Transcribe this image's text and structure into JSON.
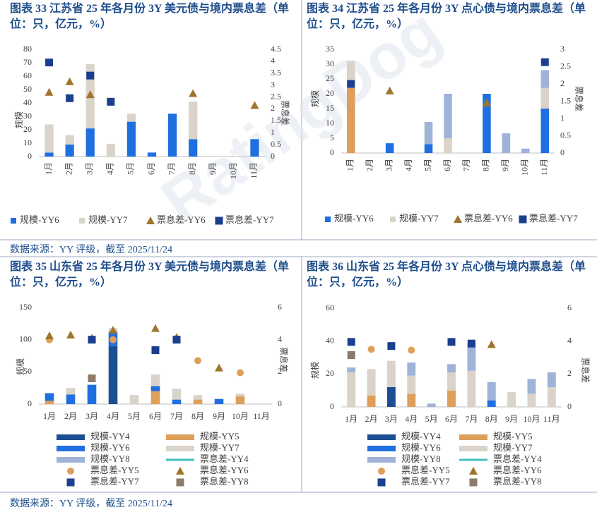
{
  "watermark": "RatingDog",
  "source_notes": [
    "数据来源：YY 评级，截至 2025/11/24",
    "数据来源：YY 评级，截至 2025/11/24"
  ],
  "chart_data": [
    {
      "type": "bar",
      "title": "图表 33 江苏省 25 年各月份 3Y 美元债与境内票息差（单位：只，亿元，%）",
      "y_label": "规模",
      "y2_label": "票息差",
      "categories": [
        "1月",
        "2月",
        "3月",
        "4月",
        "5月",
        "6月",
        "7月",
        "8月",
        "9月",
        "10月",
        "11月"
      ],
      "ylim": [
        0,
        80
      ],
      "yticks": [
        0,
        10,
        20,
        30,
        40,
        50,
        60,
        70,
        80
      ],
      "y2lim": [
        0,
        4.5
      ],
      "y2ticks": [
        0,
        0.5,
        1,
        1.5,
        2,
        2.5,
        3,
        3.5,
        4,
        4.5
      ],
      "series": [
        {
          "name": "规模-YY6",
          "kind": "bar",
          "color": "#1f6fe0",
          "values": [
            3,
            9,
            21,
            null,
            26,
            3,
            32,
            13,
            null,
            null,
            13
          ]
        },
        {
          "name": "规模-YY7",
          "kind": "bar",
          "color": "#d9d3c9",
          "values": [
            21,
            7,
            48,
            9.5,
            6,
            null,
            null,
            28,
            null,
            null,
            null
          ]
        },
        {
          "name": "票息差-YY6",
          "kind": "scatter",
          "marker": "triangle",
          "axis": "y2",
          "color": "#a0742c",
          "values": [
            2.7,
            3.15,
            2.6,
            null,
            null,
            null,
            null,
            2.65,
            null,
            null,
            2.15
          ]
        },
        {
          "name": "票息差-YY7",
          "kind": "scatter",
          "marker": "square",
          "axis": "y2",
          "color": "#1a3f8f",
          "values": [
            3.95,
            2.45,
            3.4,
            2.3,
            null,
            null,
            null,
            null,
            null,
            null,
            null
          ]
        }
      ]
    },
    {
      "type": "bar",
      "title": "图表 34 江苏省 25 年各月份 3Y 点心债与境内票息差（单位：只，亿元，%）",
      "y_label": "规模",
      "y2_label": "票息差",
      "categories": [
        "1月",
        "2月",
        "3月",
        "4月",
        "5月",
        "6月",
        "7月",
        "8月",
        "9月",
        "10月",
        "11月"
      ],
      "ylim": [
        0,
        35
      ],
      "yticks": [
        0,
        5,
        10,
        15,
        20,
        25,
        30,
        35
      ],
      "y2lim": [
        0,
        3
      ],
      "y2ticks": [
        0,
        0.5,
        1,
        1.5,
        2,
        2.5,
        3
      ],
      "series": [
        {
          "kind": "bar",
          "color": "#dd9f5a",
          "values": [
            22,
            null,
            null,
            null,
            null,
            null,
            null,
            null,
            null,
            null,
            null
          ]
        },
        {
          "name": "规模-YY6",
          "kind": "bar",
          "color": "#1f6fe0",
          "values": [
            null,
            null,
            3.3,
            null,
            3,
            null,
            null,
            20,
            null,
            null,
            15
          ]
        },
        {
          "name": "规模-YY7",
          "kind": "bar",
          "color": "#d9d3c9",
          "values": [
            9,
            null,
            null,
            null,
            null,
            5,
            null,
            null,
            null,
            null,
            7
          ]
        },
        {
          "kind": "bar",
          "color": "#9fb3d9",
          "values": [
            null,
            null,
            null,
            null,
            7.5,
            15,
            null,
            null,
            6.7,
            1.5,
            6
          ]
        },
        {
          "name": "票息差-YY6",
          "kind": "scatter",
          "marker": "triangle",
          "axis": "y2",
          "color": "#a0742c",
          "values": [
            null,
            null,
            1.8,
            null,
            null,
            null,
            null,
            1.45,
            null,
            null,
            null
          ]
        },
        {
          "name": "票息差-YY7",
          "kind": "scatter",
          "marker": "square",
          "axis": "y2",
          "color": "#1a3f8f",
          "values": [
            2.0,
            null,
            null,
            null,
            null,
            null,
            null,
            null,
            null,
            null,
            2.63
          ]
        }
      ]
    },
    {
      "type": "bar",
      "title": "图表 35 山东省 25 年各月份 3Y 美元债与境内票息差（单位：只，亿元，%）",
      "y_label": "规模",
      "y2_label": "票息差",
      "categories": [
        "1月",
        "2月",
        "3月",
        "4月",
        "5月",
        "6月",
        "7月",
        "8月",
        "9月",
        "10月",
        "11月"
      ],
      "ylim": [
        0,
        150
      ],
      "yticks": [
        0,
        50,
        100,
        150
      ],
      "y2lim": [
        0,
        6
      ],
      "y2ticks": [
        0,
        2,
        4,
        6
      ],
      "series": [
        {
          "name": "规模-YY4",
          "kind": "bar",
          "color": "#1b4f91",
          "values": [
            null,
            null,
            null,
            90,
            null,
            null,
            null,
            null,
            null,
            null,
            null
          ]
        },
        {
          "name": "规模-YY5",
          "kind": "bar",
          "color": "#dd9f5a",
          "values": [
            5,
            null,
            null,
            null,
            null,
            20,
            null,
            7,
            null,
            12,
            null
          ]
        },
        {
          "name": "规模-YY6",
          "kind": "bar",
          "color": "#1f6fe0",
          "values": [
            12,
            15,
            30,
            22,
            null,
            8,
            7,
            null,
            8,
            null,
            null
          ]
        },
        {
          "name": "规模-YY7",
          "kind": "bar",
          "color": "#d9d3c9",
          "values": [
            null,
            10,
            null,
            6,
            14,
            18,
            17,
            7,
            null,
            4,
            null
          ]
        },
        {
          "name": "规模-YY8",
          "kind": "bar",
          "color": "#9fb3d9",
          "values": [
            null,
            null,
            null,
            null,
            null,
            null,
            null,
            null,
            null,
            null,
            null
          ]
        },
        {
          "name": "票息差-YY4",
          "kind": "line",
          "axis": "y2",
          "color": "#3fbfbf",
          "values": [
            null,
            null,
            null,
            null,
            null,
            null,
            null,
            null,
            null,
            null,
            null
          ]
        },
        {
          "name": "票息差-YY5",
          "kind": "scatter",
          "marker": "circle",
          "axis": "y2",
          "color": "#dd9f5a",
          "values": [
            4.0,
            null,
            null,
            4.0,
            null,
            null,
            null,
            2.7,
            null,
            1.95,
            null
          ]
        },
        {
          "name": "票息差-YY6",
          "kind": "scatter",
          "marker": "triangle",
          "axis": "y2",
          "color": "#a0742c",
          "values": [
            4.25,
            4.3,
            4.1,
            4.6,
            null,
            4.7,
            4.15,
            null,
            2.25,
            null,
            null
          ]
        },
        {
          "name": "票息差-YY7",
          "kind": "scatter",
          "marker": "square",
          "axis": "y2",
          "color": "#1a3f8f",
          "values": [
            null,
            null,
            4.0,
            null,
            null,
            3.35,
            4.0,
            null,
            null,
            null,
            null
          ]
        },
        {
          "name": "票息差-YY8",
          "kind": "scatter",
          "marker": "square",
          "axis": "y2",
          "color": "#8c7b6a",
          "values": [
            null,
            null,
            1.6,
            null,
            null,
            null,
            null,
            null,
            null,
            null,
            null
          ]
        }
      ]
    },
    {
      "type": "bar",
      "title": "图表 36 山东省 25 年各月份 3Y 点心债与境内票息差（单位：只，亿元，%）",
      "y_label": "规模",
      "y2_label": "票息差",
      "categories": [
        "1月",
        "2月",
        "3月",
        "4月",
        "5月",
        "6月",
        "7月",
        "8月",
        "9月",
        "10月",
        "11月"
      ],
      "ylim": [
        0,
        60
      ],
      "yticks": [
        0,
        20,
        40,
        60
      ],
      "y2lim": [
        0,
        6
      ],
      "y2ticks": [
        0,
        2,
        4,
        6
      ],
      "series": [
        {
          "name": "规模-YY4",
          "kind": "bar",
          "color": "#1b4f91",
          "values": [
            null,
            null,
            12,
            null,
            null,
            null,
            null,
            null,
            null,
            null,
            null
          ]
        },
        {
          "name": "规模-YY5",
          "kind": "bar",
          "color": "#dd9f5a",
          "values": [
            null,
            7,
            null,
            8,
            null,
            10,
            null,
            null,
            null,
            null,
            null
          ]
        },
        {
          "name": "规模-YY6",
          "kind": "bar",
          "color": "#1f6fe0",
          "values": [
            null,
            null,
            null,
            null,
            null,
            null,
            null,
            4,
            null,
            null,
            null
          ]
        },
        {
          "name": "规模-YY7",
          "kind": "bar",
          "color": "#d9d3c9",
          "values": [
            21,
            16,
            16,
            11,
            null,
            11,
            22,
            null,
            9,
            8,
            12
          ]
        },
        {
          "name": "规模-YY8",
          "kind": "bar",
          "color": "#9fb3d9",
          "values": [
            3,
            null,
            null,
            8,
            2,
            5,
            17,
            11,
            null,
            9,
            9
          ]
        },
        {
          "name": "票息差-YY4",
          "kind": "line",
          "axis": "y2",
          "color": "#3fbfbf",
          "values": [
            null,
            null,
            null,
            null,
            null,
            null,
            null,
            null,
            null,
            null,
            null
          ]
        },
        {
          "name": "票息差-YY5",
          "kind": "scatter",
          "marker": "circle",
          "axis": "y2",
          "color": "#dd9f5a",
          "values": [
            null,
            3.5,
            null,
            3.45,
            null,
            null,
            null,
            null,
            null,
            null,
            null
          ]
        },
        {
          "name": "票息差-YY6",
          "kind": "scatter",
          "marker": "triangle",
          "axis": "y2",
          "color": "#a0742c",
          "values": [
            null,
            null,
            null,
            null,
            null,
            null,
            null,
            3.8,
            null,
            null,
            null
          ]
        },
        {
          "name": "票息差-YY7",
          "kind": "scatter",
          "marker": "square",
          "axis": "y2",
          "color": "#1a3f8f",
          "values": [
            3.95,
            null,
            3.7,
            null,
            null,
            3.95,
            3.85,
            null,
            null,
            null,
            null
          ]
        },
        {
          "name": "票息差-YY8",
          "kind": "scatter",
          "marker": "square",
          "axis": "y2",
          "color": "#8c7b6a",
          "values": [
            3.15,
            null,
            null,
            null,
            null,
            null,
            null,
            null,
            null,
            null,
            null
          ]
        }
      ]
    }
  ]
}
